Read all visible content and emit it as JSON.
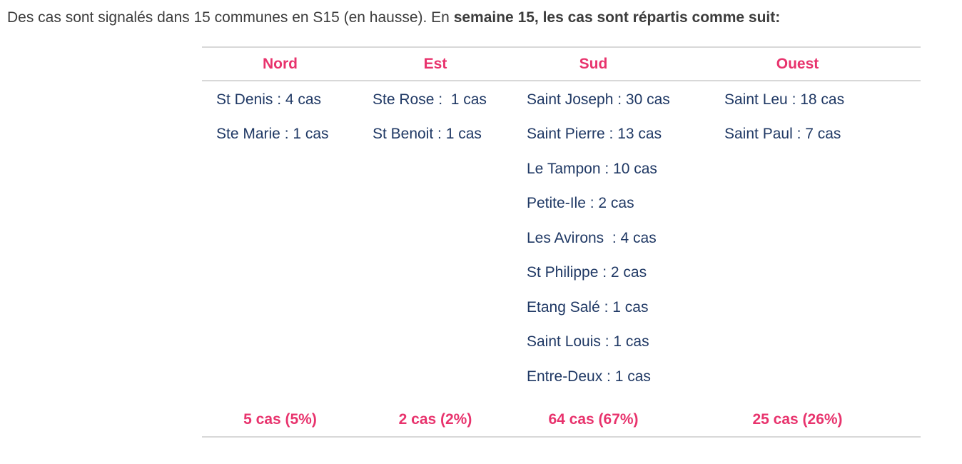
{
  "intro": {
    "text_regular": "Des cas sont signalés dans 15 communes en S15 (en hausse). En ",
    "text_bold": "semaine 15, les cas sont répartis comme suit:"
  },
  "table": {
    "columns": [
      {
        "header": "Nord",
        "entries": [
          "St Denis : 4 cas",
          "Ste Marie : 1 cas"
        ],
        "total": "5 cas (5%)"
      },
      {
        "header": "Est",
        "entries": [
          "Ste Rose :  1 cas",
          "St Benoit : 1 cas"
        ],
        "total": "2 cas (2%)"
      },
      {
        "header": "Sud",
        "entries": [
          "Saint Joseph : 30 cas",
          "Saint Pierre : 13 cas",
          "Le Tampon : 10 cas",
          "Petite-Ile : 2 cas",
          "Les Avirons  : 4 cas",
          "St Philippe : 2 cas",
          "Etang Salé : 1 cas",
          "Saint Louis : 1 cas",
          "Entre-Deux : 1 cas"
        ],
        "total": "64 cas (67%)"
      },
      {
        "header": "Ouest",
        "entries": [
          "Saint Leu : 18 cas",
          "Saint Paul : 7 cas"
        ],
        "total": "25 cas (26%)"
      }
    ]
  },
  "colors": {
    "accent_pink": "#E8336D",
    "entry_navy": "#1F3864",
    "rule_gray": "#D8D8D8",
    "intro_gray": "#3C3C3C"
  }
}
